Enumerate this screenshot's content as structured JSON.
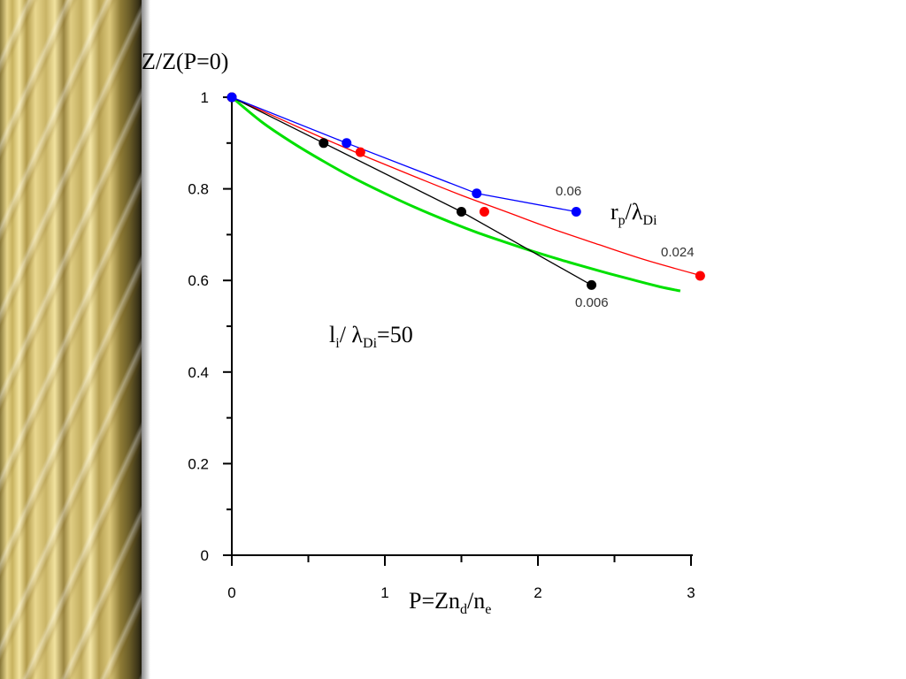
{
  "chart_data": {
    "type": "line",
    "ylabel": "Z/Z(P=0)",
    "xlabel": "P=Zn",
    "xlabel_sub1": "d",
    "xlabel_mid": "/n",
    "xlabel_sub2": "e",
    "xlim": [
      0,
      3
    ],
    "ylim": [
      0,
      1
    ],
    "x_ticks": [
      "0",
      "1",
      "2",
      "3"
    ],
    "x_tick_values": [
      0,
      1,
      2,
      3
    ],
    "y_ticks": [
      "0",
      "0.2",
      "0.4",
      "0.6",
      "0.8",
      "1"
    ],
    "y_tick_values": [
      0,
      0.2,
      0.4,
      0.6,
      0.8,
      1
    ],
    "grid": false,
    "legend_title_main": "r",
    "legend_title_sub": "p",
    "legend_title_mid": "/λ",
    "legend_title_sub2": "Di",
    "annotation_main": "l",
    "annotation_sub1": "i",
    "annotation_mid": "/ λ",
    "annotation_sub2": "Di",
    "annotation_end": "=50",
    "series": [
      {
        "name": "0.06",
        "color": "#0000ff",
        "style": "line-markers",
        "points": [
          [
            0,
            1.0
          ],
          [
            0.75,
            0.9
          ],
          [
            1.6,
            0.79
          ],
          [
            2.25,
            0.75
          ]
        ]
      },
      {
        "name": "0.024",
        "color": "#ff0000",
        "style": "curve-markers",
        "markers": [
          [
            0,
            1.0
          ],
          [
            0.84,
            0.88
          ],
          [
            1.65,
            0.75
          ],
          [
            3.06,
            0.61
          ]
        ],
        "curve": [
          [
            0,
            1.0
          ],
          [
            0.3,
            0.955
          ],
          [
            0.6,
            0.91
          ],
          [
            0.9,
            0.867
          ],
          [
            1.2,
            0.826
          ],
          [
            1.5,
            0.786
          ],
          [
            1.8,
            0.749
          ],
          [
            2.1,
            0.712
          ],
          [
            2.4,
            0.678
          ],
          [
            2.7,
            0.645
          ],
          [
            3.06,
            0.611
          ]
        ]
      },
      {
        "name": "0.006",
        "color": "#000000",
        "style": "line-markers",
        "points": [
          [
            0,
            1.0
          ],
          [
            0.6,
            0.9
          ],
          [
            1.5,
            0.75
          ],
          [
            2.35,
            0.59
          ]
        ]
      },
      {
        "name": "",
        "color": "#00e000",
        "style": "curve",
        "curve": [
          [
            0,
            1.0
          ],
          [
            0.2,
            0.945
          ],
          [
            0.4,
            0.9
          ],
          [
            0.6,
            0.86
          ],
          [
            0.8,
            0.823
          ],
          [
            1.0,
            0.79
          ],
          [
            1.2,
            0.759
          ],
          [
            1.4,
            0.731
          ],
          [
            1.6,
            0.705
          ],
          [
            1.8,
            0.682
          ],
          [
            2.0,
            0.66
          ],
          [
            2.2,
            0.64
          ],
          [
            2.4,
            0.621
          ],
          [
            2.6,
            0.603
          ],
          [
            2.8,
            0.586
          ],
          [
            2.93,
            0.577
          ]
        ]
      }
    ]
  }
}
